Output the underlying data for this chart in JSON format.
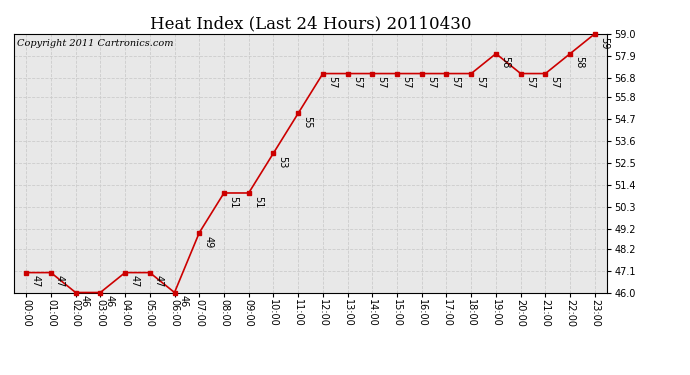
{
  "title": "Heat Index (Last 24 Hours) 20110430",
  "copyright": "Copyright 2011 Cartronics.com",
  "x_labels": [
    "00:00",
    "01:00",
    "02:00",
    "03:00",
    "04:00",
    "05:00",
    "06:00",
    "07:00",
    "08:00",
    "09:00",
    "10:00",
    "11:00",
    "12:00",
    "13:00",
    "14:00",
    "15:00",
    "16:00",
    "17:00",
    "18:00",
    "19:00",
    "20:00",
    "21:00",
    "22:00",
    "23:00"
  ],
  "y_values": [
    47,
    47,
    46,
    46,
    47,
    47,
    46,
    49,
    51,
    51,
    53,
    55,
    57,
    57,
    57,
    57,
    57,
    57,
    57,
    58,
    57,
    57,
    58,
    59
  ],
  "ylim_min": 46.0,
  "ylim_max": 59.0,
  "y_ticks": [
    46.0,
    47.1,
    48.2,
    49.2,
    50.3,
    51.4,
    52.5,
    53.6,
    54.7,
    55.8,
    56.8,
    57.9,
    59.0
  ],
  "line_color": "#cc0000",
  "marker_color": "#cc0000",
  "bg_color": "#ffffff",
  "plot_bg_color": "#e8e8e8",
  "grid_color": "#cccccc",
  "title_fontsize": 12,
  "annotation_fontsize": 7,
  "copyright_fontsize": 7,
  "tick_fontsize": 7
}
